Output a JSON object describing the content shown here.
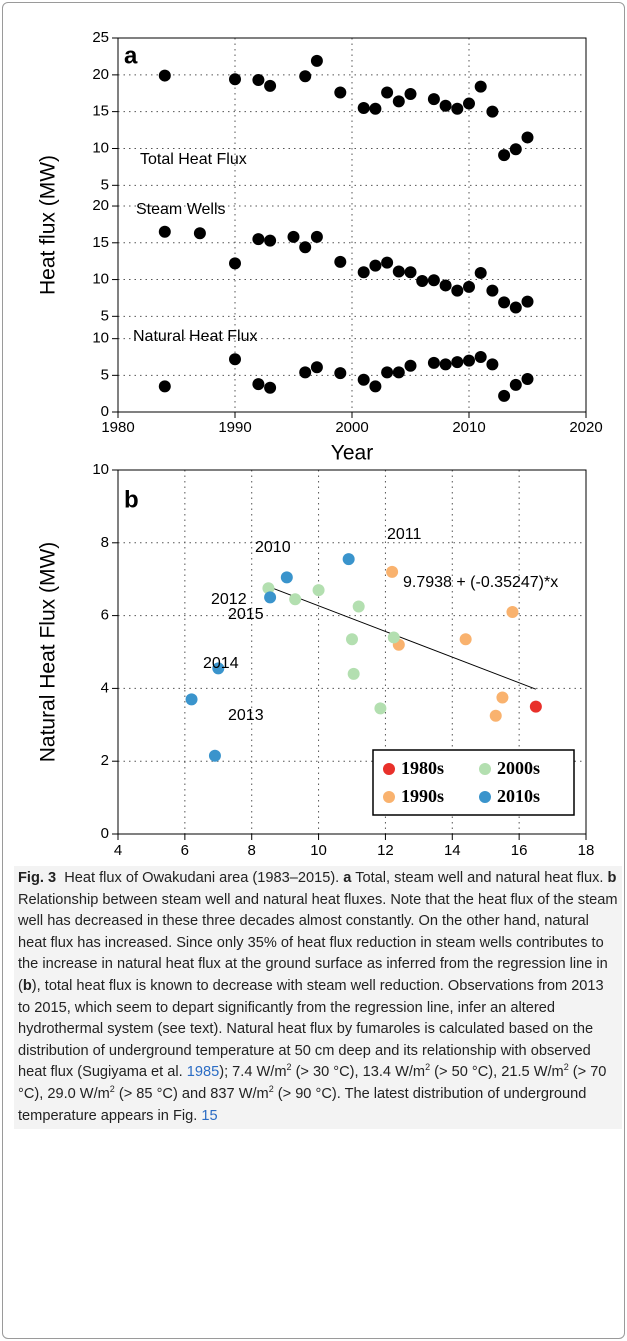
{
  "chart_data": [
    {
      "type": "scatter",
      "panel_letter": "a",
      "x_label": "Year",
      "y_label": "Heat flux (MW)",
      "xlim": [
        1980,
        2020
      ],
      "xticks": [
        1980,
        1990,
        2000,
        2010,
        2020
      ],
      "grid": true,
      "color": "#000000",
      "series": [
        {
          "name": "Total Heat Flux",
          "ylim": [
            4.5,
            25
          ],
          "yticks": [
            5,
            10,
            15,
            20,
            25
          ],
          "x": [
            1984,
            1990,
            1992,
            1993,
            1996,
            1997,
            1999,
            2001,
            2002,
            2003,
            2004,
            2005,
            2007,
            2008,
            2009,
            2010,
            2011,
            2012,
            2013,
            2014,
            2015
          ],
          "values": [
            19.9,
            19.4,
            19.3,
            18.5,
            19.8,
            21.9,
            17.6,
            15.5,
            15.4,
            17.6,
            16.4,
            17.4,
            16.7,
            15.8,
            15.4,
            16.1,
            18.4,
            15.0,
            9.1,
            9.9,
            11.5
          ]
        },
        {
          "name": "Steam Wells",
          "ylim": [
            4.5,
            21.5
          ],
          "yticks": [
            5,
            10,
            15,
            20
          ],
          "x": [
            1984,
            1987,
            1990,
            1992,
            1993,
            1995,
            1996,
            1997,
            1999,
            2001,
            2002,
            2003,
            2004,
            2005,
            2006,
            2007,
            2008,
            2009,
            2010,
            2011,
            2012,
            2013,
            2014,
            2015
          ],
          "values": [
            16.5,
            16.3,
            12.2,
            15.5,
            15.3,
            15.8,
            14.4,
            15.8,
            12.4,
            11.0,
            11.9,
            12.3,
            11.1,
            11.0,
            9.8,
            9.9,
            9.2,
            8.5,
            9.0,
            10.9,
            8.5,
            6.9,
            6.2,
            7.0
          ]
        },
        {
          "name": "Natural Heat Flux",
          "ylim": [
            0,
            10.5
          ],
          "yticks": [
            0,
            5,
            10
          ],
          "x": [
            1984,
            1990,
            1992,
            1993,
            1996,
            1997,
            1999,
            2001,
            2002,
            2003,
            2004,
            2005,
            2007,
            2008,
            2009,
            2010,
            2011,
            2012,
            2013,
            2014,
            2015
          ],
          "values": [
            3.5,
            7.2,
            3.8,
            3.3,
            5.4,
            6.1,
            5.3,
            4.4,
            3.5,
            5.4,
            5.4,
            6.3,
            6.7,
            6.5,
            6.8,
            7.0,
            7.5,
            6.5,
            2.2,
            3.7,
            4.5
          ]
        }
      ]
    },
    {
      "type": "scatter",
      "panel_letter": "b",
      "x_label": "Heat Flux of Steam Wells (MW)",
      "y_label": "Natural Heat Flux (MW)",
      "xlim": [
        4,
        18
      ],
      "xticks": [
        4,
        6,
        8,
        10,
        12,
        14,
        16,
        18
      ],
      "ylim": [
        0,
        10
      ],
      "yticks": [
        0,
        2,
        4,
        6,
        8,
        10
      ],
      "grid": true,
      "legend": "lower right",
      "series": [
        {
          "name": "1980s",
          "color": "#e8302a",
          "x": [
            16.5
          ],
          "values": [
            3.5
          ]
        },
        {
          "name": "1990s",
          "color": "#f9b26e",
          "x": [
            12.2,
            15.5,
            15.3,
            14.4,
            15.8,
            12.4
          ],
          "values": [
            7.2,
            3.75,
            3.25,
            5.35,
            6.1,
            5.2
          ]
        },
        {
          "name": "2000s",
          "color": "#b3dfb0",
          "x": [
            11.05,
            11.85,
            12.25,
            11.0,
            8.5,
            9.3,
            10.0,
            11.2
          ],
          "values": [
            4.4,
            3.45,
            5.4,
            5.35,
            6.75,
            6.45,
            6.7,
            6.25
          ]
        },
        {
          "name": "2010s",
          "color": "#3a94cc",
          "x": [
            9.05,
            10.9,
            8.55,
            6.9,
            6.2,
            7.0
          ],
          "values": [
            7.05,
            7.55,
            6.5,
            2.15,
            3.7,
            4.55
          ]
        }
      ],
      "annotations": [
        "2010",
        "2011",
        "2012",
        "2013",
        "2014",
        "2015"
      ],
      "regression": {
        "label": "9.7938 + (-0.35247)*x",
        "intercept": 9.7938,
        "slope": -0.35247,
        "x_range": [
          8.5,
          16.5
        ]
      }
    }
  ],
  "caption": [
    {
      "text": "Fig. 3",
      "style": "bold"
    },
    {
      "text": "  Heat flux of Owakudani area (1983–2015). "
    },
    {
      "text": "a",
      "style": "bold"
    },
    {
      "text": " Total, steam well and natural heat flux. "
    },
    {
      "text": "b",
      "style": "bold"
    },
    {
      "text": " Relationship between steam well and natural heat fluxes. Note that the heat flux of the steam well has decreased in these three decades almost constantly. On the other hand, natural heat flux has increased. Since only 35% of heat flux reduction in steam wells contributes to the increase in natural heat flux at the ground surface as inferred from the regression line in ("
    },
    {
      "text": "b",
      "style": "bold"
    },
    {
      "text": "), total heat flux is known to decrease with steam well reduction. Observations from 2013 to 2015, which seem to depart significantly from the regression line, infer an altered hydrothermal system (see text). Natural heat flux by fumaroles is calculated based on the distribution of underground temperature at 50 cm deep and its relationship with observed heat flux (Sugiyama et al. "
    },
    {
      "text": "1985",
      "style": "link"
    },
    {
      "text": "); 7.4 W/m"
    },
    {
      "text": "2",
      "style": "sup"
    },
    {
      "text": " (> 30 °C), 13.4 W/m"
    },
    {
      "text": "2",
      "style": "sup"
    },
    {
      "text": " (> 50 °C), 21.5 W/m"
    },
    {
      "text": "2",
      "style": "sup"
    },
    {
      "text": " (> 70 °C), 29.0 W/m"
    },
    {
      "text": "2",
      "style": "sup"
    },
    {
      "text": " (> 85 °C) and 837 W/m"
    },
    {
      "text": "2",
      "style": "sup"
    },
    {
      "text": " (> 90 °C). The latest distribution of underground temperature appears in Fig. "
    },
    {
      "text": "15",
      "style": "link"
    }
  ]
}
